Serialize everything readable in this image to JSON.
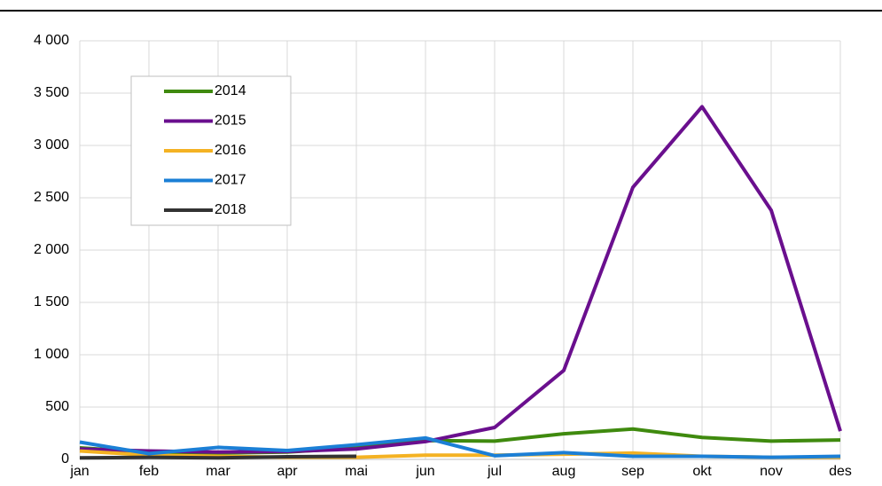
{
  "chart_data": {
    "type": "line",
    "categories": [
      "jan",
      "feb",
      "mar",
      "apr",
      "mai",
      "jun",
      "jul",
      "aug",
      "sep",
      "okt",
      "nov",
      "des"
    ],
    "series": [
      {
        "name": "2014",
        "color": "#3f8a0e",
        "values": [
          110,
          70,
          60,
          70,
          110,
          180,
          175,
          245,
          290,
          210,
          175,
          185
        ]
      },
      {
        "name": "2015",
        "color": "#6a0f8e",
        "values": [
          100,
          80,
          70,
          75,
          100,
          170,
          305,
          850,
          2600,
          3370,
          2380,
          270
        ]
      },
      {
        "name": "2016",
        "color": "#f4b223",
        "values": [
          80,
          40,
          30,
          20,
          20,
          40,
          40,
          50,
          60,
          30,
          20,
          20
        ]
      },
      {
        "name": "2017",
        "color": "#1b7fd6",
        "values": [
          165,
          55,
          115,
          85,
          140,
          205,
          35,
          65,
          30,
          30,
          20,
          30
        ]
      },
      {
        "name": "2018",
        "color": "#333333",
        "values": [
          15,
          20,
          15,
          25,
          30,
          null,
          null,
          null,
          null,
          null,
          null,
          null
        ]
      }
    ],
    "ylim": [
      0,
      4000
    ],
    "yticks": [
      0,
      500,
      {
        "value": 1000,
        "label": "1 000"
      },
      {
        "value": 1500,
        "label": "1 500"
      },
      {
        "value": 2000,
        "label": "2 000"
      },
      {
        "value": 2500,
        "label": "2 500"
      },
      {
        "value": 3000,
        "label": "3 000"
      },
      {
        "value": 3500,
        "label": "3 500"
      },
      {
        "value": 4000,
        "label": "4 000"
      }
    ],
    "grid": true,
    "legend": "upper left"
  }
}
